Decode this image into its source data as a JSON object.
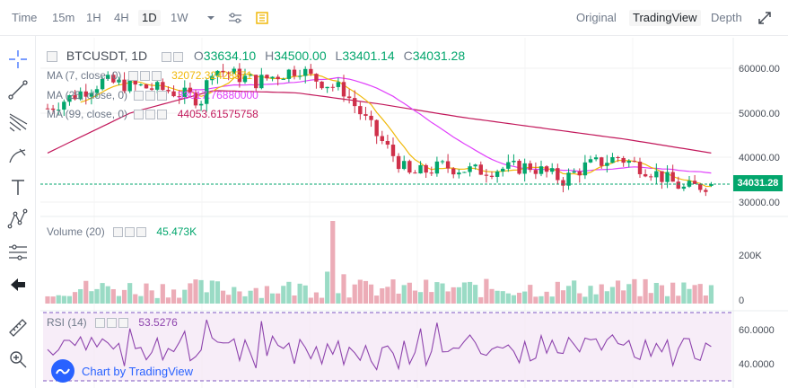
{
  "toolbar": {
    "timeframes": [
      "Time",
      "15m",
      "1H",
      "4H",
      "1D",
      "1W"
    ],
    "active_timeframe": "1D",
    "view_modes": [
      "Original",
      "TradingView",
      "Depth"
    ],
    "active_view": "TradingView"
  },
  "legend": {
    "symbol": "BTCUSDT, 1D",
    "open_label": "O",
    "open": "33634.10",
    "high_label": "H",
    "high": "34500.00",
    "low_label": "L",
    "low": "33401.14",
    "close_label": "C",
    "close": "34031.28",
    "ma7_label": "MA (7, close, 0)",
    "ma7_value": "32072.32428571",
    "ma25_label": "MA (25, close, 0)",
    "ma25_value": "33017.76880000",
    "ma99_label": "MA (99, close, 0)",
    "ma99_value": "44053.61575758"
  },
  "volume_legend": {
    "label": "Volume (20)",
    "value": "45.473K"
  },
  "rsi_legend": {
    "label": "RSI (14)",
    "value": "53.5276"
  },
  "price_axis": [
    "60000.00",
    "50000.00",
    "40000.00",
    "30000.00"
  ],
  "last_price": "34031.28",
  "volume_axis": [
    "200K",
    "0"
  ],
  "rsi_axis": [
    "60.0000",
    "40.0000"
  ],
  "badge": "Chart by TradingView",
  "colors": {
    "up": "#03a66d",
    "down": "#cf304a",
    "ma7": "#f0b90b",
    "ma25": "#e040fb",
    "ma99": "#c2185b",
    "rsi": "#8e44ad"
  },
  "icons": [
    "crosshair-icon",
    "trendline-icon",
    "fib-icon",
    "brush-icon",
    "text-icon",
    "pattern-icon",
    "measure-icon",
    "back-arrow-icon",
    "ruler-icon",
    "zoom-icon"
  ],
  "chart_data": {
    "type": "candlestick",
    "price_range": [
      28000,
      64000
    ],
    "ma99_approx": [
      41000,
      50000,
      55000,
      54500,
      52000,
      49000,
      46500,
      44000,
      41000
    ],
    "rsi_range": [
      25,
      75
    ],
    "rsi_levels": [
      70,
      30
    ]
  }
}
